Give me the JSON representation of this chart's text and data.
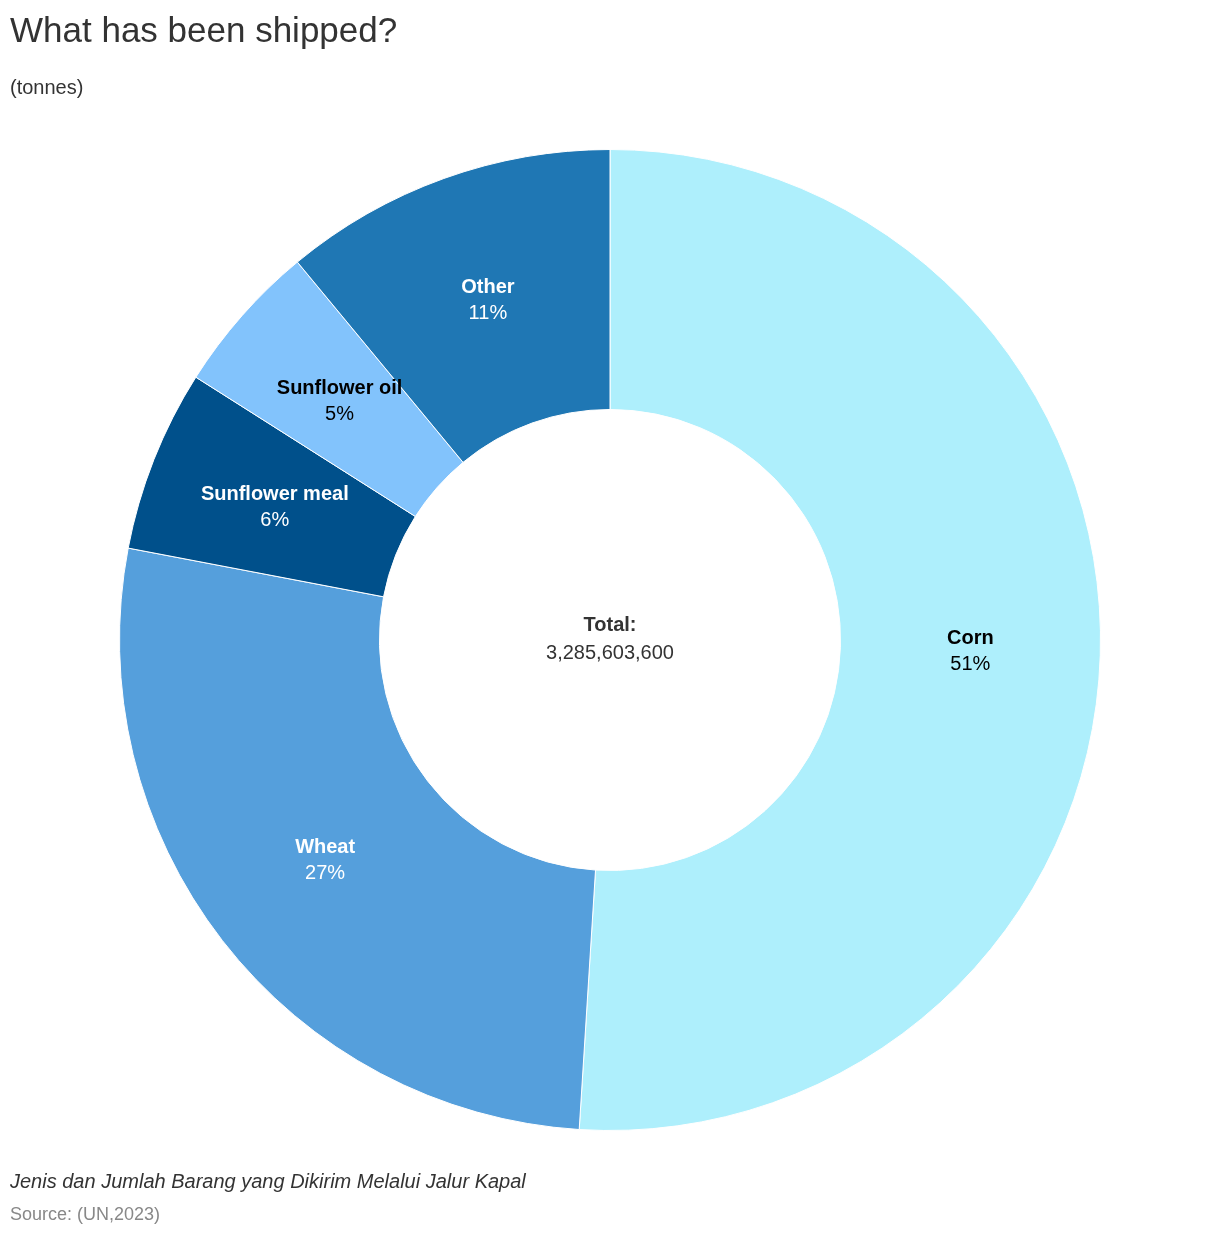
{
  "chart_data": {
    "type": "donut",
    "title": "What has been shipped?",
    "subtitle": "(tonnes)",
    "categories": [
      "Corn",
      "Wheat",
      "Sunflower meal",
      "Sunflower oil",
      "Other"
    ],
    "values": [
      51,
      27,
      6,
      5,
      11
    ],
    "value_labels": [
      "51%",
      "27%",
      "6%",
      "5%",
      "11%"
    ],
    "colors": [
      "#aeeffc",
      "#559fdc",
      "#00508b",
      "#82c3fc",
      "#1f77b4"
    ],
    "legend": false,
    "annotations": [
      "Total:",
      "3,285,603,600",
      "Jenis dan Jumlah Barang yang Dikirim Melalui Jalur Kapal",
      "Source: (UN,2023)"
    ]
  }
}
